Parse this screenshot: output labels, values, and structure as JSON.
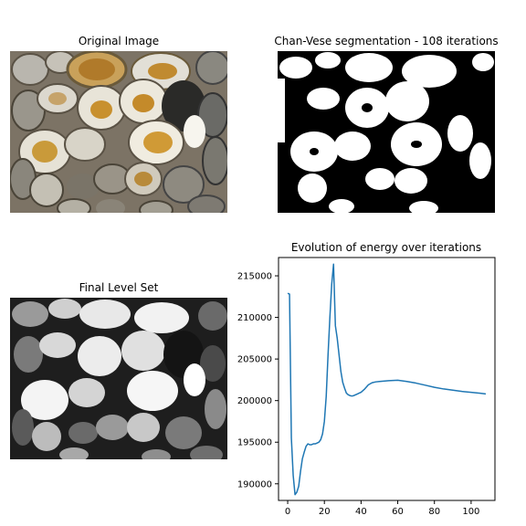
{
  "panels": {
    "original": {
      "title": "Original Image"
    },
    "segmentation": {
      "title": "Chan-Vese segmentation - 108 iterations"
    },
    "level_set": {
      "title": "Final Level Set"
    }
  },
  "colors": {
    "line": "#1f77b4",
    "axis": "#000000",
    "seg_white": "#ffffff",
    "seg_black": "#000000"
  },
  "chart_data": {
    "type": "line",
    "title": "Evolution of energy over iterations",
    "xlabel": "",
    "ylabel": "",
    "xlim": [
      -5,
      113
    ],
    "ylim": [
      188000,
      217200
    ],
    "xticks": [
      0,
      20,
      40,
      60,
      80,
      100
    ],
    "yticks": [
      190000,
      195000,
      200000,
      205000,
      210000,
      215000
    ],
    "grid": false,
    "series": [
      {
        "x": [
          0,
          1,
          2,
          3,
          4,
          5,
          6,
          7,
          8,
          9,
          10,
          11,
          12,
          13,
          14,
          15,
          16,
          17,
          18,
          19,
          20,
          21,
          22,
          23,
          24,
          25,
          26,
          27,
          28,
          29,
          30,
          31,
          32,
          33,
          34,
          35,
          36,
          37,
          38,
          39,
          40,
          42,
          44,
          46,
          48,
          50,
          55,
          60,
          65,
          70,
          75,
          80,
          85,
          90,
          95,
          100,
          105,
          108
        ],
        "y": [
          212900,
          212800,
          195500,
          191000,
          188700,
          189000,
          189700,
          191500,
          193000,
          193800,
          194500,
          194800,
          194700,
          194700,
          194800,
          194800,
          194900,
          195000,
          195300,
          196000,
          197500,
          200500,
          205500,
          210000,
          214000,
          216400,
          209000,
          207500,
          205500,
          203500,
          202200,
          201500,
          200900,
          200700,
          200600,
          200550,
          200600,
          200700,
          200800,
          200900,
          201000,
          201400,
          201900,
          202150,
          202250,
          202300,
          202400,
          202450,
          202300,
          202100,
          201850,
          201600,
          201400,
          201250,
          201100,
          201000,
          200880,
          200800
        ]
      }
    ]
  }
}
